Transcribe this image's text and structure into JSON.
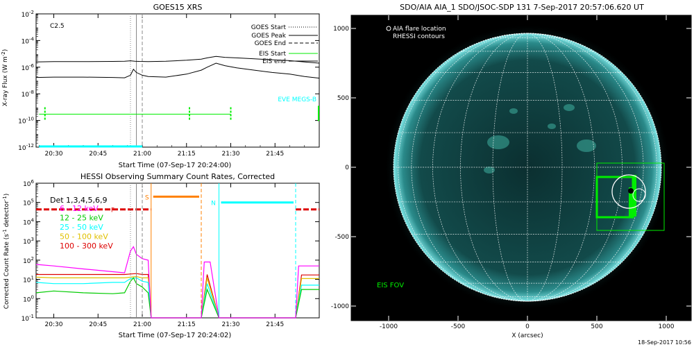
{
  "goes": {
    "title": "GOES15 XRS",
    "class_label": "C2.5",
    "ylabel": "X-ray Flux (W m",
    "ylabel_sup": "-2",
    "ylabel_close": ")",
    "xlabel": "Start Time (07-Sep-17 20:24:00)",
    "legend": [
      "GOES Start",
      "GOES Peak",
      "GOES End",
      "EIS Start",
      "EIS end"
    ],
    "eve_label": "EVE MEGS-B"
  },
  "hessi": {
    "title": "HESSI Observing Summary Count Rates, Corrected",
    "ylabel_a": "Corrected Count Rate (s",
    "ylabel_sup": "-1",
    "ylabel_b": " detector",
    "ylabel_close": ")",
    "xlabel": "Start Time (07-Sep-17 20:24:02)",
    "det_label": "Det 1,3,4,5,6,9",
    "s_label": "S",
    "n_label": "N",
    "f_label": "F",
    "legend": [
      {
        "label": "6 - 12 keV",
        "color": "#ff00ff"
      },
      {
        "label": "12 - 25 keV",
        "color": "#00cc00"
      },
      {
        "label": "25 - 50 keV",
        "color": "#00ffff"
      },
      {
        "label": "50 - 100 keV",
        "color": "#e0c000"
      },
      {
        "label": "100 - 300 keV",
        "color": "#dd0000"
      }
    ]
  },
  "aia": {
    "title": "SDO/AIA AIA_1 SDO/JSOC-SDP 131   7-Sep-2017 20:57:06.620 UT",
    "legend_1": "AIA flare location",
    "legend_2": "RHESSI contours",
    "eis_fov_label": "EIS FOV",
    "xlabel": "X (arcsec)",
    "date_stamp": "18-Sep-2017 10:56"
  },
  "colors": {
    "eis": "#00ee00",
    "eve": "#00ffff",
    "orange": "#ff8000",
    "sun_disk": "#0e3a3a",
    "sun_limb": "#6ad6d6"
  },
  "chart_data": [
    {
      "type": "line",
      "title": "GOES15 XRS",
      "xlabel": "Start Time (07-Sep-17 20:24:00)",
      "ylabel": "X-ray Flux (W m-2)",
      "x_ticks": [
        "20:30",
        "20:45",
        "21:00",
        "21:15",
        "21:30",
        "21:45"
      ],
      "x_tick_minutes": [
        30,
        45,
        60,
        75,
        90,
        105
      ],
      "xlim_minutes": [
        24,
        120
      ],
      "ylim": [
        1e-12,
        0.01
      ],
      "y_scale": "log",
      "y_ticks": [
        "10^-12",
        "10^-10",
        "10^-8",
        "10^-6",
        "10^-4",
        "10^-2"
      ],
      "goes_start_min": 56,
      "goes_peak_min": 58,
      "goes_end_min": 60,
      "series": [
        {
          "name": "",
          "x": [
            24,
            30,
            40,
            50,
            54,
            56,
            57.5,
            59,
            62,
            68,
            75,
            80,
            82,
            85,
            88,
            92,
            98,
            104,
            110,
            115,
            120
          ],
          "y": [
            2.5e-06,
            2.6e-06,
            2.6e-06,
            2.7e-06,
            2.8e-06,
            3e-06,
            2.8e-06,
            2.7e-06,
            2.6e-06,
            2.8e-06,
            3.3e-06,
            4e-06,
            5e-06,
            6.5e-06,
            5.5e-06,
            5e-06,
            4.2e-06,
            3.6e-06,
            3.1e-06,
            2.5e-06,
            2e-06
          ]
        },
        {
          "name": "",
          "x": [
            24,
            30,
            40,
            50,
            54,
            56,
            57,
            58,
            60,
            62,
            68,
            75,
            80,
            82,
            85,
            88,
            92,
            98,
            104,
            110,
            115,
            120
          ],
          "y": [
            1.7e-07,
            1.8e-07,
            1.8e-07,
            1.7e-07,
            1.6e-07,
            2.5e-07,
            7e-07,
            4e-07,
            2.5e-07,
            2e-07,
            1.8e-07,
            3e-07,
            6e-07,
            1e-06,
            2e-06,
            1.3e-06,
            9e-07,
            6e-07,
            4e-07,
            3e-07,
            2e-07,
            1.5e-07
          ]
        }
      ],
      "eis_segments": [
        [
          25,
          90
        ]
      ],
      "eis_level": 3e-10,
      "eve_segment": [
        25,
        60
      ],
      "eve_level": 1e-12
    },
    {
      "type": "line",
      "title": "HESSI Observing Summary Count Rates, Corrected",
      "xlabel": "Start Time (07-Sep-17 20:24:02)",
      "ylabel": "Corrected Count Rate (s-1 detector-1)",
      "x_ticks": [
        "20:30",
        "20:45",
        "21:00",
        "21:15",
        "21:30",
        "21:45"
      ],
      "x_tick_minutes": [
        30,
        45,
        60,
        75,
        90,
        105
      ],
      "xlim_minutes": [
        24,
        120
      ],
      "ylim": [
        0.1,
        1000000.0
      ],
      "y_scale": "log",
      "y_ticks": [
        "10^-1",
        "10^0",
        "10^1",
        "10^2",
        "10^3",
        "10^4",
        "10^5",
        "10^6"
      ],
      "saa_interval": [
        63,
        80
      ],
      "night_interval": [
        86,
        112
      ],
      "series": [
        {
          "name": "6 - 12 keV",
          "x": [
            24,
            30,
            40,
            50,
            54,
            56,
            57,
            58,
            60,
            62,
            63,
            80,
            81,
            83,
            86,
            112,
            113,
            120
          ],
          "y": [
            60,
            50,
            35,
            25,
            22,
            300,
            500,
            200,
            120,
            100,
            0.1,
            0.1,
            80,
            80,
            0.1,
            0.1,
            50,
            50
          ]
        },
        {
          "name": "12 - 25 keV",
          "x": [
            24,
            30,
            40,
            50,
            54,
            56,
            57,
            58,
            60,
            62,
            63,
            80,
            82,
            86,
            112,
            114,
            120
          ],
          "y": [
            2,
            2.5,
            2,
            1.8,
            2,
            8,
            12,
            6,
            4,
            2,
            0.1,
            0.1,
            3,
            0.1,
            0.1,
            3,
            3
          ]
        },
        {
          "name": "25 - 50 keV",
          "x": [
            24,
            30,
            40,
            50,
            54,
            56,
            58,
            60,
            62,
            63,
            80,
            82,
            86,
            112,
            114,
            120
          ],
          "y": [
            7,
            6,
            6,
            7,
            7,
            11,
            12,
            8,
            7,
            0.1,
            0.1,
            6,
            0.1,
            0.1,
            5,
            5
          ]
        },
        {
          "name": "50 - 100 keV",
          "x": [
            24,
            30,
            40,
            50,
            54,
            56,
            58,
            60,
            62,
            63,
            80,
            82,
            86,
            112,
            114,
            120
          ],
          "y": [
            13,
            12,
            12,
            12,
            12,
            13,
            14,
            12,
            12,
            0.1,
            0.1,
            12,
            0.1,
            0.1,
            11,
            11
          ]
        },
        {
          "name": "100 - 300 keV",
          "x": [
            24,
            30,
            40,
            50,
            54,
            56,
            58,
            60,
            62,
            63,
            80,
            82,
            86,
            112,
            114,
            120
          ],
          "y": [
            18,
            18,
            18,
            18,
            18,
            19,
            20,
            18,
            18,
            0.1,
            0.1,
            18,
            0.1,
            0.1,
            17,
            17
          ]
        }
      ]
    }
  ]
}
